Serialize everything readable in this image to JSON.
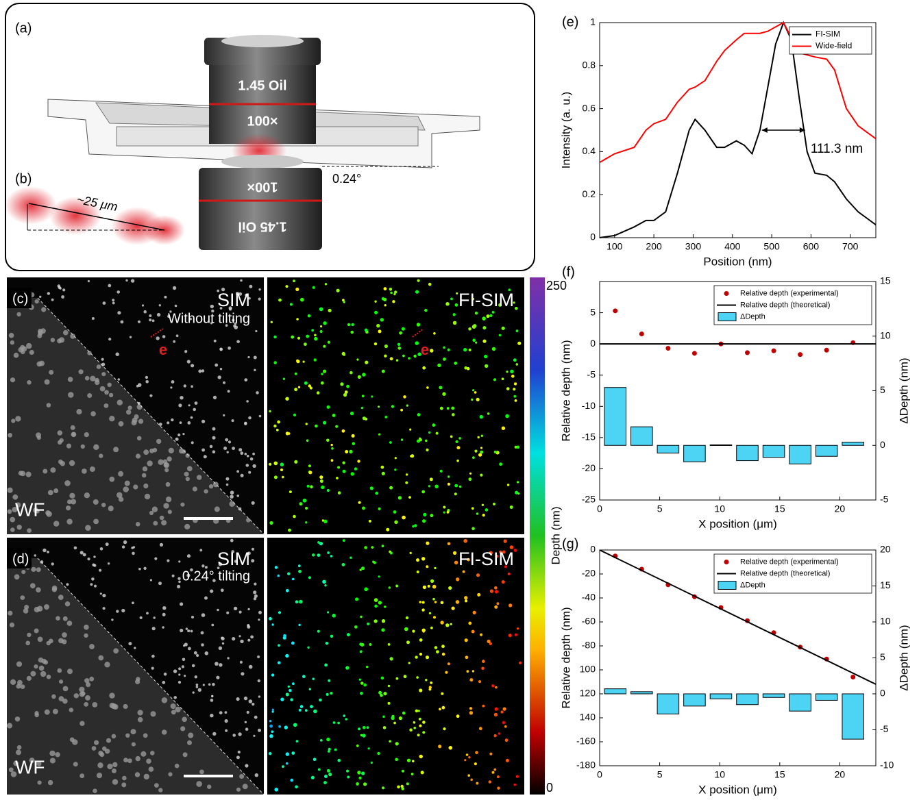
{
  "figure": {
    "panel_labels": [
      "(a)",
      "(b)",
      "(c)",
      "(d)",
      "(e)",
      "(f)",
      "(g)"
    ],
    "schematic": {
      "top_objective": [
        "1.45 Oil",
        "100×"
      ],
      "bottom_objective": [
        "100×",
        "1.45 Oil"
      ],
      "tilt": "0.24°",
      "distance": "~25 μm"
    },
    "images": {
      "c": {
        "sim": "SIM",
        "sim_note": "Without tilting",
        "fi_sim": "FI-SIM",
        "marker": "e",
        "wf": "WF"
      },
      "d": {
        "sim": "SIM",
        "sim_note": "0.24° tilting",
        "fi_sim": "FI-SIM",
        "wf": "WF"
      }
    },
    "colorbar": {
      "max": 250,
      "min": 0,
      "label": "Depth (nm)"
    }
  },
  "chart_data": [
    {
      "type": "line",
      "xlabel": "Position (nm)",
      "ylabel": "Intensity (a. u.)",
      "annotation": "111.3 nm",
      "x": [
        62,
        100,
        150,
        180,
        200,
        230,
        260,
        290,
        305,
        330,
        360,
        380,
        410,
        430,
        450,
        470,
        490,
        510,
        530,
        550,
        570,
        590,
        610,
        640,
        660,
        690,
        720,
        765
      ],
      "series": [
        {
          "name": "FI-SIM",
          "color": "#000000",
          "values": [
            0,
            0.01,
            0.05,
            0.08,
            0.08,
            0.12,
            0.3,
            0.5,
            0.55,
            0.5,
            0.42,
            0.42,
            0.45,
            0.43,
            0.39,
            0.5,
            0.7,
            0.9,
            1.0,
            0.92,
            0.65,
            0.4,
            0.3,
            0.29,
            0.26,
            0.18,
            0.12,
            0.06
          ]
        },
        {
          "name": "Wide-field",
          "color": "#ff0000",
          "values": [
            0.35,
            0.39,
            0.42,
            0.5,
            0.53,
            0.55,
            0.63,
            0.69,
            0.7,
            0.73,
            0.82,
            0.87,
            0.92,
            0.95,
            0.95,
            0.95,
            0.96,
            0.98,
            1.0,
            0.93,
            0.86,
            0.85,
            0.84,
            0.83,
            0.78,
            0.6,
            0.52,
            0.46
          ]
        }
      ],
      "xlim": [
        62,
        765
      ],
      "xticks": [
        100,
        200,
        300,
        400,
        500,
        600,
        700
      ],
      "ylim": [
        0,
        1
      ],
      "yticks": [
        0,
        0.2,
        0.4,
        0.6,
        0.8,
        1
      ],
      "legend": "upper right"
    },
    {
      "type": "mixed",
      "xlabel": "X position (μm)",
      "ylabel": "Relative depth (nm)",
      "y2label": "ΔDepth (nm)",
      "series": [
        {
          "name": "Relative depth (experimental)",
          "type": "scatter",
          "color": "#c00000",
          "x": [
            1.3,
            3.5,
            5.7,
            7.9,
            10.1,
            12.3,
            14.5,
            16.7,
            18.9,
            21.1
          ],
          "values": [
            5.3,
            1.6,
            -0.7,
            -1.5,
            0,
            -1.4,
            -1.1,
            -1.7,
            -1.0,
            0.2
          ]
        },
        {
          "name": "Relative depth (theoretical)",
          "type": "line",
          "color": "#000000",
          "x": [
            0,
            23
          ],
          "values": [
            0,
            0
          ]
        },
        {
          "name": "ΔDepth",
          "type": "bar",
          "color": "#4dd4f5",
          "axis": "y2",
          "x": [
            1.3,
            3.5,
            5.7,
            7.9,
            10.1,
            12.3,
            14.5,
            16.7,
            18.9,
            21.1
          ],
          "values": [
            5.3,
            1.7,
            -0.7,
            -1.5,
            0.05,
            -1.4,
            -1.1,
            -1.7,
            -1.0,
            0.3
          ]
        }
      ],
      "xlim": [
        0,
        23
      ],
      "xticks": [
        0,
        5,
        10,
        15,
        20
      ],
      "ylim": [
        -25,
        10
      ],
      "yticks": [
        -25,
        -20,
        -15,
        -10,
        -5,
        0,
        5
      ],
      "y2lim": [
        -5,
        15
      ],
      "y2ticks": [
        -5,
        0,
        5,
        10,
        15
      ],
      "legend": "upper right"
    },
    {
      "type": "mixed",
      "xlabel": "X position (μm)",
      "ylabel": "Relative depth (nm)",
      "y2label": "ΔDepth (nm)",
      "series": [
        {
          "name": "Relative depth (experimental)",
          "type": "scatter",
          "color": "#c00000",
          "x": [
            1.3,
            3.5,
            5.7,
            7.9,
            10.1,
            12.3,
            14.5,
            16.7,
            18.9,
            21.1
          ],
          "values": [
            -5,
            -16,
            -29,
            -39,
            -48,
            -59,
            -69,
            -81,
            -91,
            -106
          ]
        },
        {
          "name": "Relative depth (theoretical)",
          "type": "line",
          "color": "#000000",
          "x": [
            0,
            23
          ],
          "values": [
            0,
            -112
          ]
        },
        {
          "name": "ΔDepth",
          "type": "bar",
          "color": "#4dd4f5",
          "axis": "y2",
          "x": [
            1.3,
            3.5,
            5.7,
            7.9,
            10.1,
            12.3,
            14.5,
            16.7,
            18.9,
            21.1
          ],
          "values": [
            0.7,
            0.3,
            -2.8,
            -1.7,
            -0.7,
            -1.5,
            -0.5,
            -2.4,
            -0.9,
            -6.3
          ]
        }
      ],
      "xlim": [
        0,
        23
      ],
      "xticks": [
        0,
        5,
        10,
        15,
        20
      ],
      "ylim": [
        -180,
        0
      ],
      "yticks": [
        -180,
        -160,
        {
          "value": -140,
          "label": "140"
        },
        {
          "value": -120,
          "label": "120"
        },
        {
          "value": -100,
          "label": "100"
        },
        -80,
        -60,
        -40,
        -20,
        0
      ],
      "y2lim": [
        -10,
        20
      ],
      "y2ticks": [
        -10,
        -5,
        0,
        5,
        10,
        15,
        20
      ],
      "legend": "upper right"
    }
  ]
}
